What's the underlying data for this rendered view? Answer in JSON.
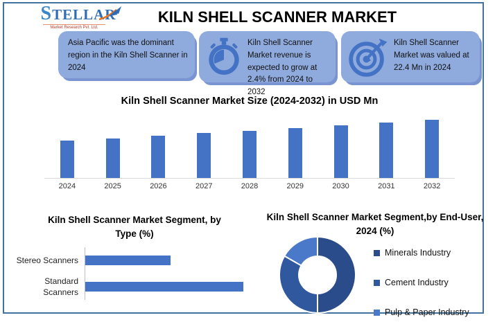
{
  "brand": {
    "name": "STELLAR",
    "tagline": "Market Research Pvt. Ltd."
  },
  "header": {
    "title": "KILN SHELL SCANNER MARKET"
  },
  "highlights": [
    {
      "icon": "none",
      "text": "Asia Pacific was the dominant region in the Kiln Shell Scanner in 2024"
    },
    {
      "icon": "stopwatch-icon",
      "text": "Kiln Shell Scanner Market revenue is expected to grow at 2.4% from 2024 to 2032"
    },
    {
      "icon": "target-icon",
      "text": "Kiln Shell Scanner Market was valued at 22.4 Mn in 2024"
    }
  ],
  "chart_data": [
    {
      "type": "bar",
      "title": "Kiln Shell Scanner Market Size (2024-2032) in USD Mn",
      "categories": [
        "2024",
        "2025",
        "2026",
        "2027",
        "2028",
        "2029",
        "2030",
        "2031",
        "2032"
      ],
      "values": [
        22.4,
        22.9,
        23.5,
        24.1,
        24.6,
        25.2,
        25.8,
        26.4,
        27.1
      ],
      "ylabel": "USD Mn",
      "ylim": [
        14,
        28
      ],
      "bar_color": "#4472C4",
      "gridlines": false,
      "value_axis_visible": false
    },
    {
      "type": "bar",
      "orientation": "horizontal",
      "title": "Kiln Shell Scanner Market Segment, by Type (%)",
      "categories": [
        "Stereo Scanners",
        "Standard Scanners"
      ],
      "values": [
        35,
        65
      ],
      "xlim": [
        0,
        70
      ],
      "bar_color": "#4472C4",
      "gridlines": false,
      "value_axis_visible": false
    },
    {
      "type": "donut",
      "title": "Kiln Shell Scanner Market Segment,by End-User, 2024 (%)",
      "segments": [
        {
          "label": "Minerals Industry",
          "value": 50,
          "color": "#2A4C8A"
        },
        {
          "label": "Cement Industry",
          "value": 33.3,
          "color": "#30589E"
        },
        {
          "label": "Pulp & Paper Industry",
          "value": 16.7,
          "color": "#4B79C9"
        }
      ],
      "legend_position": "right"
    }
  ],
  "colors": {
    "accent_blue": "#4472C4",
    "card_bg": "#8FAADC",
    "card_shadow": "#7A94D2",
    "frame_border": "#41719C",
    "axis_gray": "#D9D9D9",
    "logo_blue": "#2f6db5",
    "logo_tagline_red": "#c0392b"
  }
}
